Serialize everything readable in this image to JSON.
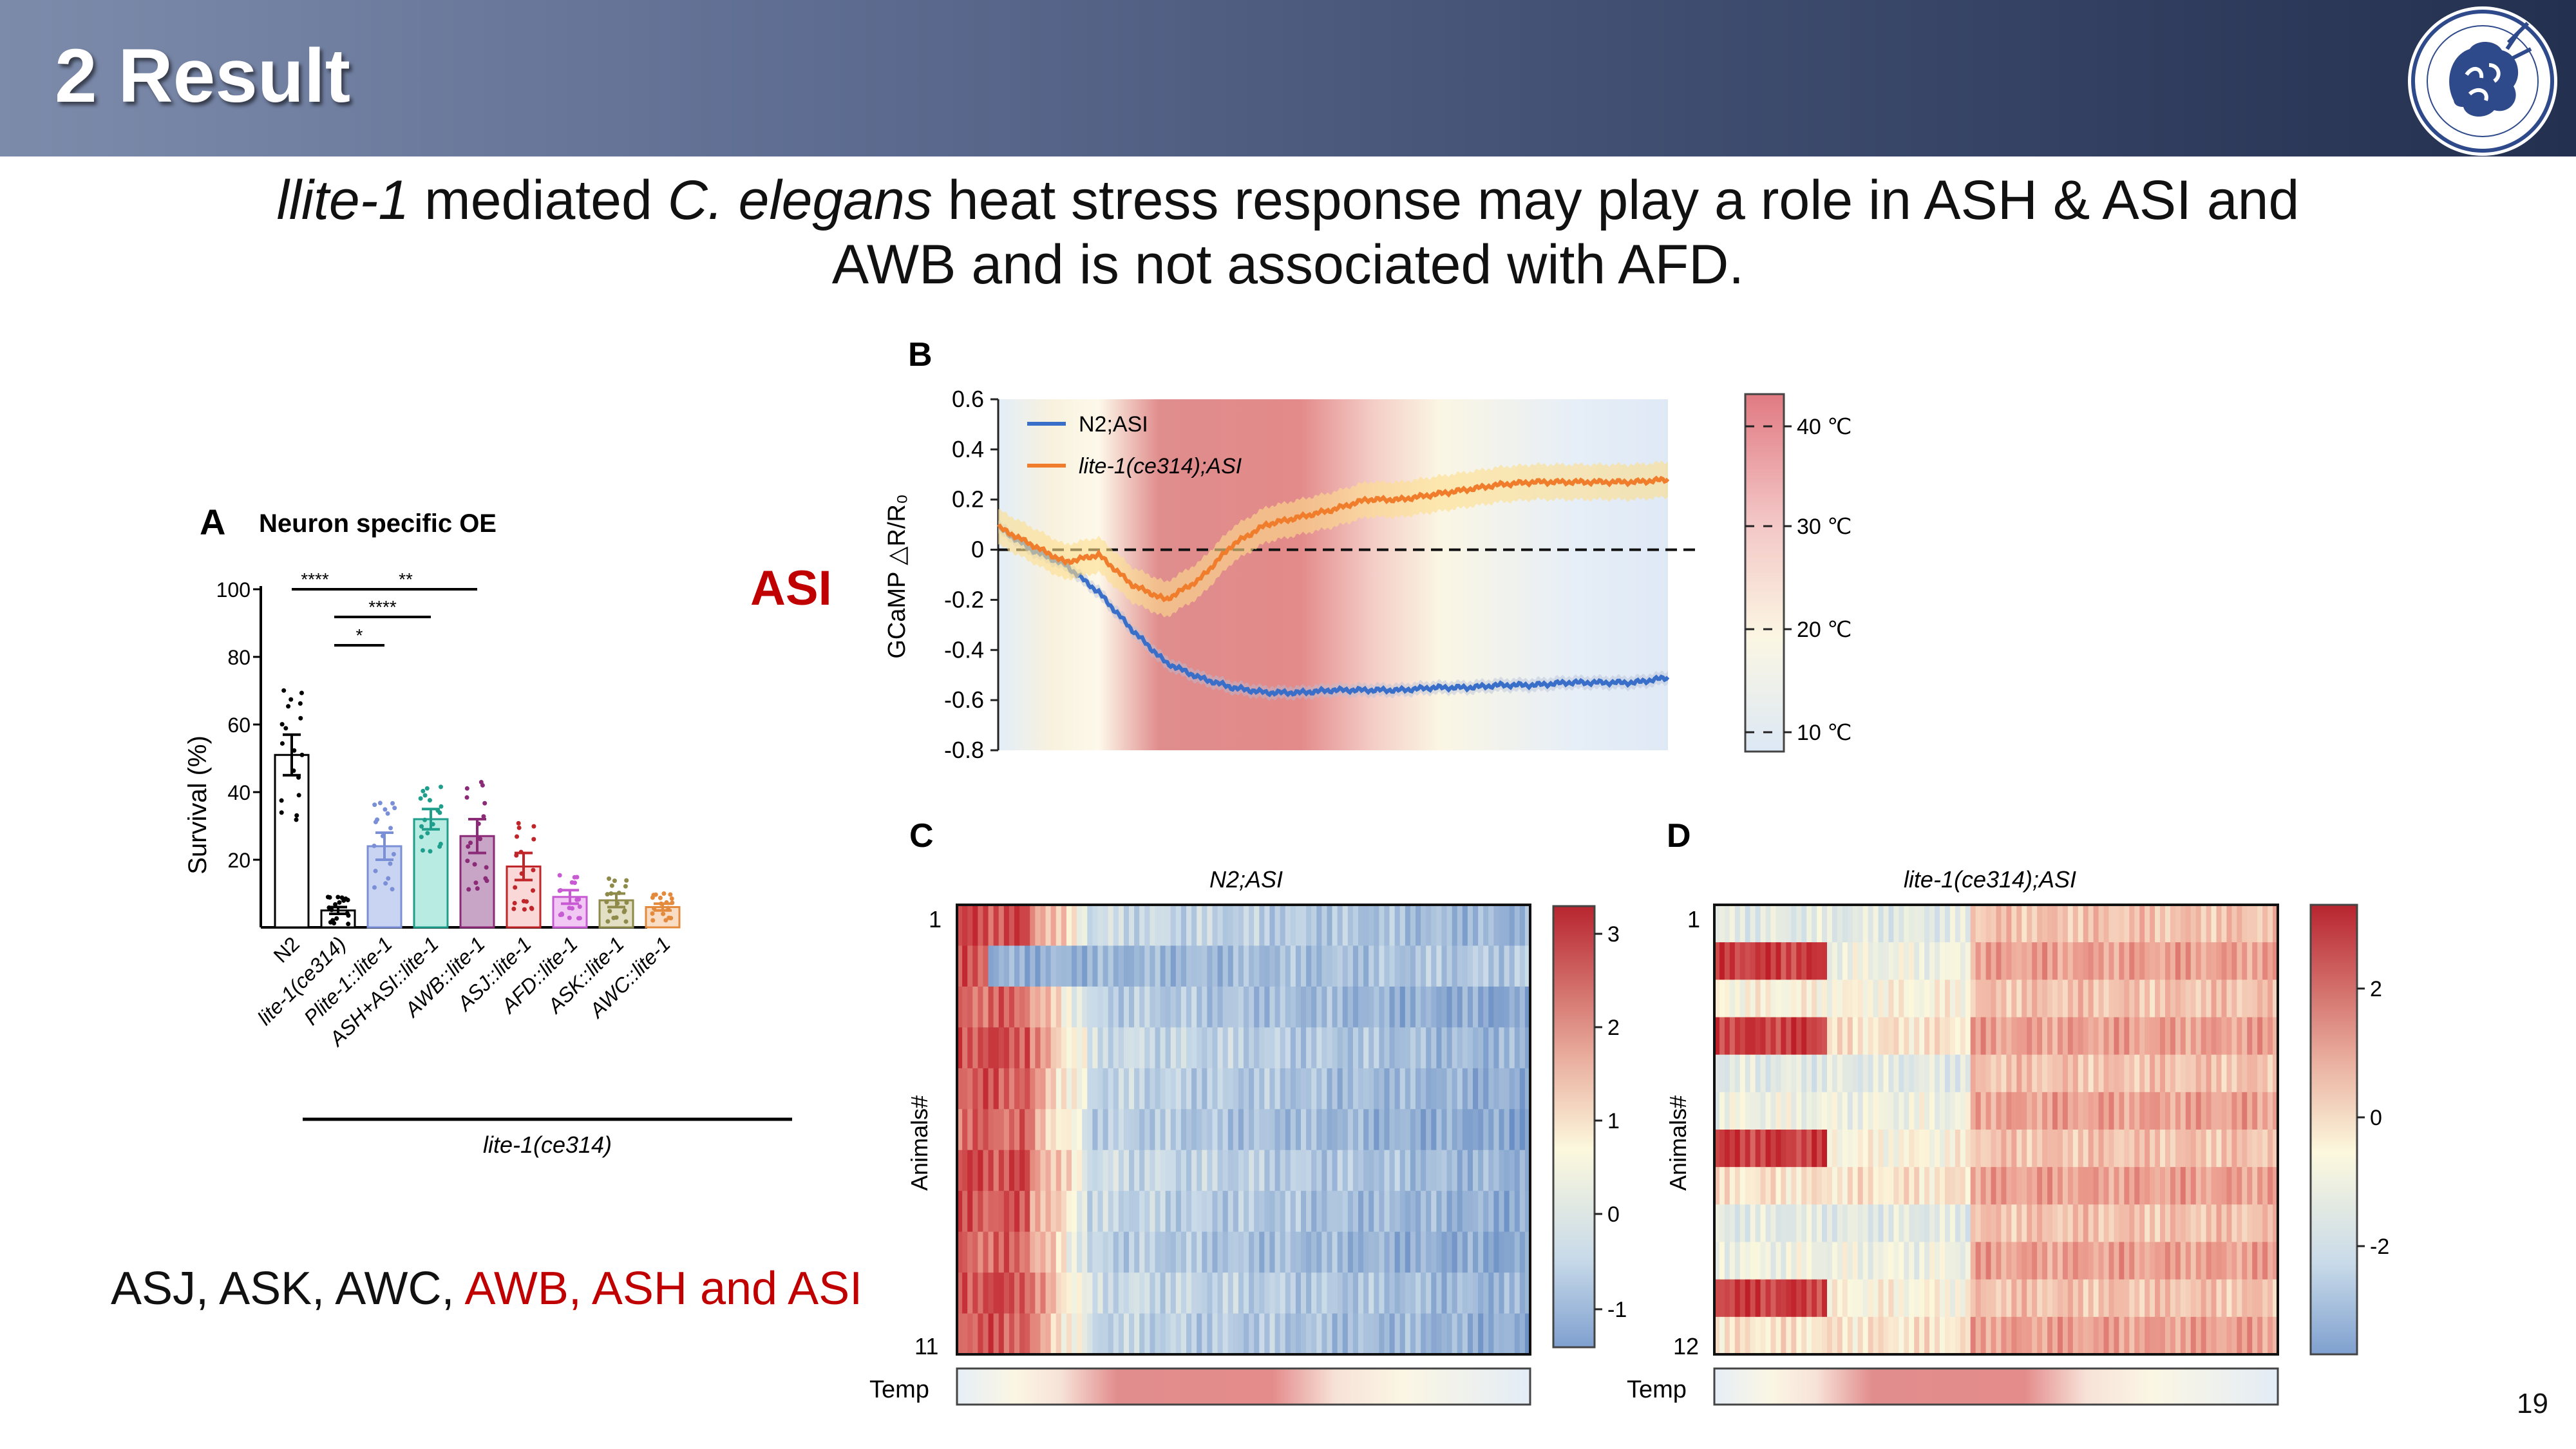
{
  "slide": {
    "title": "2 Result",
    "page_number": "19"
  },
  "subtitle": {
    "line1_italic_a": "llite-1",
    "line1_text_a": " mediated ",
    "line1_italic_b": "C. elegans",
    "line1_text_b": " heat stress response may play a role in ASH & ASI and",
    "line2": "AWB and is not associated with AFD."
  },
  "asi_label": "ASI",
  "bottom_note": {
    "black": "ASJ, ASK, AWC, ",
    "red": "AWB, ASH and ASI"
  },
  "colors": {
    "accent_red": "#c00000",
    "n2_blue": "#3a6fc9",
    "lite_orange": "#f07d2c"
  },
  "panel_a": {
    "letter": "A",
    "title": "Neuron specific OE",
    "ylabel": "Survival (%)",
    "yticks": [
      "20",
      "40",
      "60",
      "80",
      "100"
    ],
    "group_label": "lite-1(ce314)",
    "significance": [
      "****",
      "**",
      "****",
      "*"
    ]
  },
  "panel_b": {
    "letter": "B",
    "ylabel": "GCaMP △R/R₀",
    "yticks": [
      "0.6",
      "0.4",
      "0.2",
      "0",
      "-0.2",
      "-0.4",
      "-0.6",
      "-0.8"
    ],
    "legend": [
      "N2;ASI",
      "lite-1(ce314);ASI"
    ],
    "temp_ticks": [
      "40 ℃",
      "30 ℃",
      "20 ℃",
      "10 ℃"
    ]
  },
  "panel_c": {
    "letter": "C",
    "title": "N2;ASI",
    "ylabel": "Animals#",
    "first_row": "1",
    "last_row": "11",
    "temp_label": "Temp",
    "scale_ticks": [
      "3",
      "2",
      "1",
      "0",
      "-1"
    ]
  },
  "panel_d": {
    "letter": "D",
    "title": "lite-1(ce314);ASI",
    "ylabel": "Animals#",
    "first_row": "1",
    "last_row": "12",
    "temp_label": "Temp",
    "scale_ticks": [
      "2",
      "0",
      "-2"
    ]
  },
  "chart_data": [
    {
      "type": "bar",
      "title": "Neuron specific OE",
      "ylabel": "Survival (%)",
      "ylim": [
        0,
        100
      ],
      "categories": [
        "N2",
        "lite-1(ce314)",
        "Plite-1::lite-1",
        "ASH+ASI::lite-1",
        "AWB::lite-1",
        "ASJ::lite-1",
        "AFD::lite-1",
        "ASK::lite-1",
        "AWC::lite-1"
      ],
      "values": [
        51,
        5,
        24,
        32,
        27,
        18,
        9,
        8,
        6
      ],
      "errors": [
        6,
        1,
        4,
        3,
        5,
        4,
        2,
        2,
        1
      ],
      "colors": [
        "#ffffff",
        "#ffffff",
        "#c9d4f2",
        "#b8ece3",
        "#c8a4c6",
        "#fad8d8",
        "#f1c8f4",
        "#e2dfc4",
        "#f9dcc4"
      ],
      "edge_colors": [
        "#000000",
        "#000000",
        "#7a8fd6",
        "#1f9e8c",
        "#8b2a77",
        "#c0252a",
        "#c85ad3",
        "#8e8a4a",
        "#e48a3c"
      ]
    },
    {
      "type": "line",
      "xlabel": "",
      "ylabel": "GCaMP △R/R₀",
      "ylim": [
        -0.8,
        0.6
      ],
      "x": [
        0,
        5,
        10,
        15,
        20,
        25,
        30,
        35,
        40,
        45,
        50,
        55,
        60,
        65,
        70,
        75,
        80,
        85,
        90,
        95,
        100
      ],
      "series": [
        {
          "name": "N2;ASI",
          "values": [
            0.09,
            0.0,
            -0.06,
            -0.17,
            -0.32,
            -0.45,
            -0.51,
            -0.55,
            -0.57,
            -0.57,
            -0.56,
            -0.56,
            -0.56,
            -0.55,
            -0.55,
            -0.54,
            -0.54,
            -0.53,
            -0.53,
            -0.53,
            -0.51
          ]
        },
        {
          "name": "lite-1(ce314);ASI",
          "values": [
            0.09,
            0.02,
            -0.05,
            -0.02,
            -0.14,
            -0.2,
            -0.12,
            0.02,
            0.1,
            0.13,
            0.16,
            0.2,
            0.2,
            0.22,
            0.24,
            0.26,
            0.27,
            0.27,
            0.27,
            0.27,
            0.28
          ]
        }
      ],
      "temp_scale": [
        "40 ℃",
        "30 ℃",
        "20 ℃",
        "10 ℃"
      ]
    },
    {
      "type": "heatmap",
      "title": "N2;ASI",
      "ylabel": "Animals#",
      "rows": 11,
      "scale_range": [
        -1.5,
        3.5
      ]
    },
    {
      "type": "heatmap",
      "title": "lite-1(ce314);ASI",
      "ylabel": "Animals#",
      "rows": 12,
      "scale_range": [
        -3,
        3
      ]
    }
  ]
}
